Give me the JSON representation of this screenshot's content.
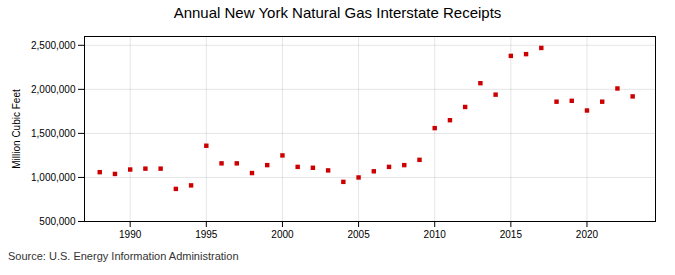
{
  "chart_data": {
    "type": "scatter",
    "title": "Annual New York Natural Gas Interstate Receipts",
    "ylabel": "Million Cubic Feet",
    "annotations": [
      "Source: U.S. Energy Information Administration"
    ],
    "x": [
      1988,
      1989,
      1990,
      1991,
      1992,
      1993,
      1994,
      1995,
      1996,
      1997,
      1998,
      1999,
      2000,
      2001,
      2002,
      2003,
      2004,
      2005,
      2006,
      2007,
      2008,
      2009,
      2010,
      2011,
      2012,
      2013,
      2014,
      2015,
      2016,
      2017,
      2018,
      2019,
      2020,
      2021,
      2022,
      2023
    ],
    "values": [
      1060000,
      1040000,
      1090000,
      1100000,
      1100000,
      870000,
      910000,
      1360000,
      1160000,
      1160000,
      1050000,
      1140000,
      1250000,
      1120000,
      1110000,
      1080000,
      950000,
      1000000,
      1070000,
      1120000,
      1140000,
      1200000,
      1560000,
      1650000,
      1800000,
      2070000,
      1940000,
      2380000,
      2400000,
      2470000,
      1860000,
      1870000,
      1760000,
      1860000,
      2010000,
      1920000
    ],
    "color": "#cc0000",
    "marker": "square",
    "xlim": [
      1987.0,
      2024.5
    ],
    "xticks": [
      1990,
      1995,
      2000,
      2005,
      2010,
      2015,
      2020
    ],
    "ylim": [
      500000,
      2600000
    ],
    "yticks": [
      {
        "value": 500000,
        "label": "500,000"
      },
      {
        "value": 1000000,
        "label": "1,000,000"
      },
      {
        "value": 1500000,
        "label": "1,500,000"
      },
      {
        "value": 2000000,
        "label": "2,000,000"
      },
      {
        "value": 2500000,
        "label": "2,500,000"
      }
    ],
    "grid": true
  }
}
